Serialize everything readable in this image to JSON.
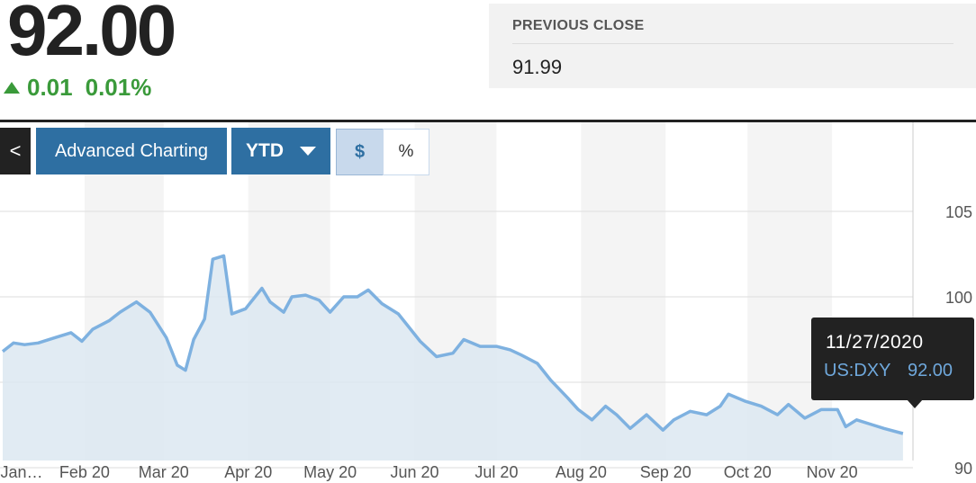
{
  "quote": {
    "price": "92.00",
    "change": "0.01",
    "change_pct": "0.01%",
    "previous_close_label": "PREVIOUS CLOSE",
    "previous_close": "91.99"
  },
  "toolbar": {
    "back_label": "<",
    "advanced_label": "Advanced Charting",
    "range_label": "YTD",
    "dollar_label": "$",
    "percent_label": "%"
  },
  "tooltip": {
    "date": "11/27/2020",
    "symbol": "US:DXY",
    "value": "92.00"
  },
  "colors": {
    "line": "#7eb1e0",
    "fill": "#dce8f1",
    "up": "#3a9a3a",
    "button": "#2e6fa2"
  },
  "chart_data": {
    "type": "area",
    "x_label_texts": [
      "Jan…",
      "Feb 20",
      "Mar 20",
      "Apr 20",
      "May 20",
      "Jun 20",
      "Jul 20",
      "Aug 20",
      "Sep 20",
      "Oct 20",
      "Nov 20"
    ],
    "y_ticks": [
      90,
      100,
      105
    ],
    "ylim": [
      89.5,
      109
    ],
    "grid": true,
    "x": [
      "2020-01-02",
      "2020-01-06",
      "2020-01-10",
      "2020-01-15",
      "2020-01-21",
      "2020-01-27",
      "2020-01-31",
      "2020-02-04",
      "2020-02-10",
      "2020-02-14",
      "2020-02-20",
      "2020-02-25",
      "2020-03-02",
      "2020-03-06",
      "2020-03-09",
      "2020-03-12",
      "2020-03-16",
      "2020-03-19",
      "2020-03-23",
      "2020-03-26",
      "2020-03-31",
      "2020-04-06",
      "2020-04-09",
      "2020-04-14",
      "2020-04-17",
      "2020-04-22",
      "2020-04-27",
      "2020-05-01",
      "2020-05-06",
      "2020-05-11",
      "2020-05-15",
      "2020-05-20",
      "2020-05-26",
      "2020-05-29",
      "2020-06-03",
      "2020-06-09",
      "2020-06-15",
      "2020-06-19",
      "2020-06-25",
      "2020-07-01",
      "2020-07-06",
      "2020-07-10",
      "2020-07-16",
      "2020-07-21",
      "2020-07-27",
      "2020-07-31",
      "2020-08-05",
      "2020-08-10",
      "2020-08-14",
      "2020-08-19",
      "2020-08-25",
      "2020-08-31",
      "2020-09-04",
      "2020-09-10",
      "2020-09-16",
      "2020-09-21",
      "2020-09-24",
      "2020-09-30",
      "2020-10-06",
      "2020-10-12",
      "2020-10-16",
      "2020-10-22",
      "2020-10-28",
      "2020-11-03",
      "2020-11-06",
      "2020-11-10",
      "2020-11-16",
      "2020-11-20",
      "2020-11-27"
    ],
    "series": [
      {
        "values": [
          96.8,
          97.3,
          97.2,
          97.3,
          97.6,
          97.9,
          97.4,
          98.1,
          98.6,
          99.1,
          99.7,
          99.1,
          97.6,
          96.0,
          95.7,
          97.5,
          98.7,
          102.2,
          102.4,
          99.0,
          99.3,
          100.5,
          99.7,
          99.1,
          100.0,
          100.1,
          99.8,
          99.1,
          100.0,
          100.0,
          100.4,
          99.6,
          99.0,
          98.4,
          97.4,
          96.5,
          96.7,
          97.5,
          97.1,
          97.1,
          96.9,
          96.6,
          96.1,
          95.1,
          94.1,
          93.4,
          92.8,
          93.6,
          93.1,
          92.3,
          93.1,
          92.2,
          92.8,
          93.3,
          93.1,
          93.6,
          94.3,
          93.9,
          93.6,
          93.1,
          93.7,
          92.9,
          93.4,
          93.4,
          92.4,
          92.8,
          92.5,
          92.3,
          92.0
        ]
      }
    ]
  }
}
